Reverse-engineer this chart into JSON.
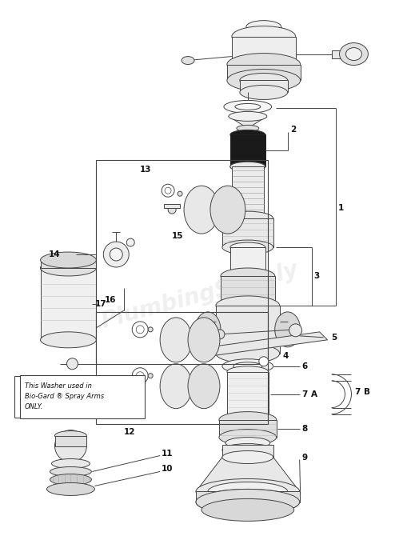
{
  "bg_color": "#ffffff",
  "line_color": "#444444",
  "fig_width": 4.99,
  "fig_height": 6.75,
  "note_text": "This Washer used in\nBio-Gard ® Spray Arms\nONLY.",
  "xmin": 0,
  "xmax": 499,
  "ymin": 0,
  "ymax": 675
}
